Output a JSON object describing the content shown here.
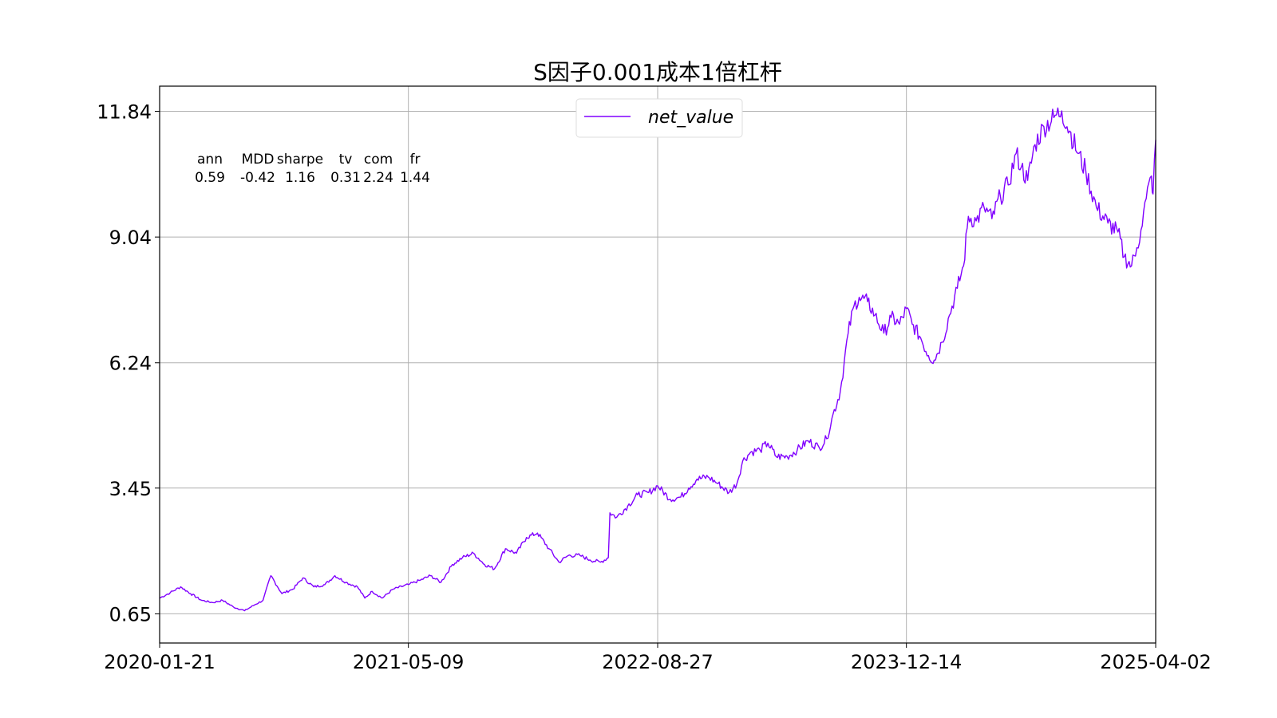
{
  "chart_data": {
    "type": "line",
    "title": "S因子0.001成本1倍杠杆",
    "xlabel": "",
    "ylabel": "",
    "x_ticks": [
      "2020-01-21",
      "2021-05-09",
      "2022-08-27",
      "2023-12-14",
      "2025-04-02"
    ],
    "xlim": [
      "2020-01-21",
      "2025-04-02"
    ],
    "y_ticks": [
      "0.65",
      "3.45",
      "6.24",
      "9.04",
      "11.84"
    ],
    "ylim": [
      -0.0,
      12.4
    ],
    "grid": true,
    "legend": {
      "position": "top-center",
      "entries": [
        "net_value"
      ]
    },
    "stats_table": {
      "headers": [
        "ann",
        "MDD",
        "sharpe",
        "tv",
        "com",
        "fr"
      ],
      "values": [
        "0.59",
        "-0.42",
        "1.16",
        "0.31",
        "2.24",
        "1.44"
      ]
    },
    "series": [
      {
        "name": "net_value",
        "color": "#8000ff",
        "points": [
          [
            "2020-01-21",
            1.0
          ],
          [
            "2020-02-10",
            1.12
          ],
          [
            "2020-03-01",
            1.25
          ],
          [
            "2020-03-20",
            1.1
          ],
          [
            "2020-04-10",
            0.95
          ],
          [
            "2020-05-01",
            0.9
          ],
          [
            "2020-05-20",
            0.95
          ],
          [
            "2020-06-10",
            0.8
          ],
          [
            "2020-07-01",
            0.72
          ],
          [
            "2020-07-20",
            0.85
          ],
          [
            "2020-08-05",
            0.95
          ],
          [
            "2020-08-20",
            1.5
          ],
          [
            "2020-09-10",
            1.1
          ],
          [
            "2020-10-01",
            1.2
          ],
          [
            "2020-10-20",
            1.45
          ],
          [
            "2020-11-10",
            1.25
          ],
          [
            "2020-12-01",
            1.3
          ],
          [
            "2020-12-20",
            1.5
          ],
          [
            "2021-01-10",
            1.35
          ],
          [
            "2021-02-01",
            1.25
          ],
          [
            "2021-02-15",
            1.0
          ],
          [
            "2021-03-01",
            1.15
          ],
          [
            "2021-03-20",
            1.0
          ],
          [
            "2021-04-10",
            1.2
          ],
          [
            "2021-05-09",
            1.3
          ],
          [
            "2021-06-01",
            1.4
          ],
          [
            "2021-06-20",
            1.5
          ],
          [
            "2021-07-10",
            1.35
          ],
          [
            "2021-08-01",
            1.75
          ],
          [
            "2021-08-20",
            1.9
          ],
          [
            "2021-09-10",
            2.0
          ],
          [
            "2021-10-01",
            1.75
          ],
          [
            "2021-10-20",
            1.65
          ],
          [
            "2021-11-10",
            2.1
          ],
          [
            "2021-12-01",
            2.0
          ],
          [
            "2021-12-20",
            2.35
          ],
          [
            "2022-01-10",
            2.45
          ],
          [
            "2022-02-01",
            2.1
          ],
          [
            "2022-02-20",
            1.8
          ],
          [
            "2022-03-10",
            1.95
          ],
          [
            "2022-04-01",
            1.95
          ],
          [
            "2022-04-20",
            1.85
          ],
          [
            "2022-05-10",
            1.8
          ],
          [
            "2022-05-25",
            1.9
          ],
          [
            "2022-05-28",
            2.9
          ],
          [
            "2022-06-10",
            2.8
          ],
          [
            "2022-07-01",
            3.05
          ],
          [
            "2022-07-20",
            3.3
          ],
          [
            "2022-08-10",
            3.35
          ],
          [
            "2022-08-27",
            3.5
          ],
          [
            "2022-09-20",
            3.2
          ],
          [
            "2022-10-10",
            3.25
          ],
          [
            "2022-10-25",
            3.45
          ],
          [
            "2022-11-10",
            3.65
          ],
          [
            "2022-12-01",
            3.7
          ],
          [
            "2022-12-20",
            3.55
          ],
          [
            "2023-01-10",
            3.35
          ],
          [
            "2023-01-25",
            3.55
          ],
          [
            "2023-02-05",
            4.05
          ],
          [
            "2023-02-20",
            4.25
          ],
          [
            "2023-03-10",
            4.3
          ],
          [
            "2023-03-25",
            4.45
          ],
          [
            "2023-04-10",
            4.15
          ],
          [
            "2023-05-01",
            4.15
          ],
          [
            "2023-05-20",
            4.3
          ],
          [
            "2023-06-10",
            4.5
          ],
          [
            "2023-07-01",
            4.35
          ],
          [
            "2023-07-15",
            4.55
          ],
          [
            "2023-07-25",
            5.0
          ],
          [
            "2023-08-10",
            5.6
          ],
          [
            "2023-08-25",
            6.9
          ],
          [
            "2023-09-05",
            7.5
          ],
          [
            "2023-09-15",
            7.7
          ],
          [
            "2023-10-01",
            7.6
          ],
          [
            "2023-10-15",
            7.3
          ],
          [
            "2023-11-01",
            6.9
          ],
          [
            "2023-11-15",
            7.25
          ],
          [
            "2023-12-01",
            7.1
          ],
          [
            "2023-12-14",
            7.45
          ],
          [
            "2023-12-25",
            7.1
          ],
          [
            "2024-01-10",
            6.8
          ],
          [
            "2024-01-25",
            6.4
          ],
          [
            "2024-02-05",
            6.3
          ],
          [
            "2024-02-20",
            6.7
          ],
          [
            "2024-03-05",
            7.3
          ],
          [
            "2024-03-20",
            7.9
          ],
          [
            "2024-04-01",
            8.4
          ],
          [
            "2024-04-10",
            9.5
          ],
          [
            "2024-04-25",
            9.4
          ],
          [
            "2024-05-10",
            9.7
          ],
          [
            "2024-05-25",
            9.45
          ],
          [
            "2024-06-10",
            9.95
          ],
          [
            "2024-06-25",
            10.2
          ],
          [
            "2024-07-10",
            10.9
          ],
          [
            "2024-07-20",
            10.6
          ],
          [
            "2024-08-01",
            10.3
          ],
          [
            "2024-08-15",
            11.1
          ],
          [
            "2024-09-01",
            11.5
          ],
          [
            "2024-09-20",
            11.7
          ],
          [
            "2024-10-05",
            11.85
          ],
          [
            "2024-10-20",
            11.4
          ],
          [
            "2024-11-05",
            10.9
          ],
          [
            "2024-11-20",
            10.5
          ],
          [
            "2024-12-10",
            9.7
          ],
          [
            "2025-01-01",
            9.35
          ],
          [
            "2025-01-20",
            9.15
          ],
          [
            "2025-02-01",
            8.6
          ],
          [
            "2025-02-15",
            8.4
          ],
          [
            "2025-02-25",
            8.8
          ],
          [
            "2025-03-05",
            9.2
          ],
          [
            "2025-03-15",
            9.9
          ],
          [
            "2025-03-25",
            10.4
          ],
          [
            "2025-03-28",
            10.0
          ],
          [
            "2025-04-02",
            11.2
          ]
        ]
      }
    ]
  }
}
